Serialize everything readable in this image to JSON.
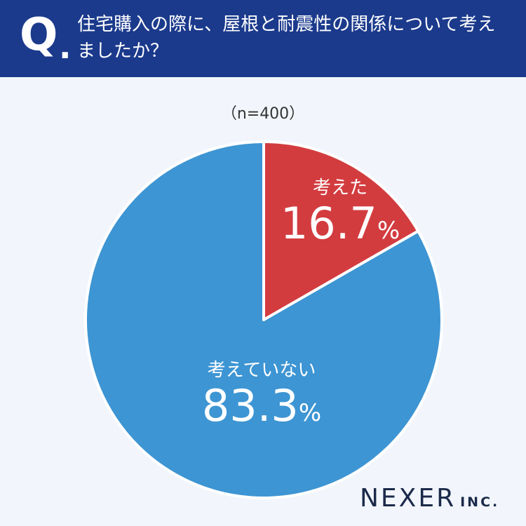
{
  "header": {
    "q_letter": "Q",
    "q_dot": ".",
    "question": "住宅購入の際に、屋根と耐震性の関係について考えましたか？"
  },
  "sample_size": "（n=400）",
  "colors": {
    "header_bg": "#1b3a8c",
    "slice_considered": "#d33c3f",
    "slice_not_considered": "#3d95d3",
    "background": "#f2f6fc"
  },
  "chart_data": {
    "type": "pie",
    "title": "住宅購入の際に、屋根と耐震性の関係について考えましたか？",
    "slices": [
      {
        "label": "考えた",
        "value": 16.7,
        "value_text": "16.7",
        "unit": "%",
        "color": "#d33c3f"
      },
      {
        "label": "考えていない",
        "value": 83.3,
        "value_text": "83.3",
        "unit": "%",
        "color": "#3d95d3"
      }
    ],
    "start": "12 o'clock, clockwise"
  },
  "logo": {
    "main": "NEXER",
    "suffix": "INC."
  }
}
